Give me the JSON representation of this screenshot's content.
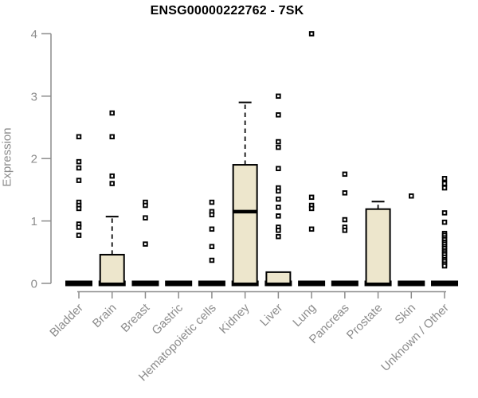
{
  "chart_data": {
    "type": "box",
    "title": "ENSG00000222762 - 7SK",
    "ylabel": "Expression",
    "xlabel": "",
    "ylim": [
      0,
      4
    ],
    "yticks": [
      0,
      1,
      2,
      3,
      4
    ],
    "grid": false,
    "legend": null,
    "categories": [
      "Bladder",
      "Brain",
      "Breast",
      "Gastric",
      "Hematopoietic cells",
      "Kidney",
      "Liver",
      "Lung",
      "Pancreas",
      "Prostate",
      "Skin",
      "Unknown / Other"
    ],
    "boxes": [
      {
        "category": "Bladder",
        "q1": 0,
        "median": 0,
        "q3": 0,
        "whisker_low": 0,
        "whisker_high": 0,
        "outliers": [
          2.35,
          1.95,
          1.85,
          1.65,
          1.3,
          1.25,
          1.2,
          0.95,
          0.9,
          0.77
        ]
      },
      {
        "category": "Brain",
        "q1": 0,
        "median": 0,
        "q3": 0.46,
        "whisker_low": 0,
        "whisker_high": 1.07,
        "outliers": [
          2.73,
          2.35,
          1.72,
          1.6
        ]
      },
      {
        "category": "Breast",
        "q1": 0,
        "median": 0,
        "q3": 0,
        "whisker_low": 0,
        "whisker_high": 0,
        "outliers": [
          1.3,
          1.25,
          1.05,
          0.63
        ]
      },
      {
        "category": "Gastric",
        "q1": 0,
        "median": 0,
        "q3": 0,
        "whisker_low": 0,
        "whisker_high": 0,
        "outliers": []
      },
      {
        "category": "Hematopoietic cells",
        "q1": 0,
        "median": 0,
        "q3": 0,
        "whisker_low": 0,
        "whisker_high": 0,
        "outliers": [
          1.3,
          1.15,
          1.1,
          0.87,
          0.59,
          0.37
        ]
      },
      {
        "category": "Kidney",
        "q1": 0,
        "median": 1.15,
        "q3": 1.9,
        "whisker_low": 0,
        "whisker_high": 2.9,
        "outliers": []
      },
      {
        "category": "Liver",
        "q1": 0,
        "median": 0,
        "q3": 0.18,
        "whisker_low": 0,
        "whisker_high": 0.18,
        "outliers": [
          3.0,
          2.7,
          2.27,
          2.18,
          1.84,
          1.53,
          1.48,
          1.35,
          1.22,
          1.08,
          0.9,
          0.85,
          0.75
        ]
      },
      {
        "category": "Lung",
        "q1": 0,
        "median": 0,
        "q3": 0,
        "whisker_low": 0,
        "whisker_high": 0,
        "outliers": [
          4.0,
          1.38,
          1.25,
          1.2,
          0.87
        ]
      },
      {
        "category": "Pancreas",
        "q1": 0,
        "median": 0,
        "q3": 0,
        "whisker_low": 0,
        "whisker_high": 0,
        "outliers": [
          1.75,
          1.45,
          1.02,
          0.9,
          0.85
        ]
      },
      {
        "category": "Prostate",
        "q1": 0,
        "median": 0,
        "q3": 1.19,
        "whisker_low": 0,
        "whisker_high": 1.31,
        "outliers": []
      },
      {
        "category": "Skin",
        "q1": 0,
        "median": 0,
        "q3": 0,
        "whisker_low": 0,
        "whisker_high": 0,
        "outliers": [
          1.4
        ]
      },
      {
        "category": "Unknown / Other",
        "q1": 0,
        "median": 0,
        "q3": 0,
        "whisker_low": 0,
        "whisker_high": 0,
        "outliers": [
          1.68,
          1.6,
          1.53,
          1.13,
          0.98,
          0.8,
          0.77,
          0.73,
          0.7,
          0.66,
          0.63,
          0.59,
          0.56,
          0.52,
          0.49,
          0.46,
          0.42,
          0.38,
          0.35,
          0.31,
          0.28
        ]
      }
    ],
    "colors": {
      "box_fill": "#ede6cc",
      "box_stroke": "#000000",
      "axis": "#8c8c8c",
      "title": "#000000",
      "background": "#ffffff"
    }
  }
}
